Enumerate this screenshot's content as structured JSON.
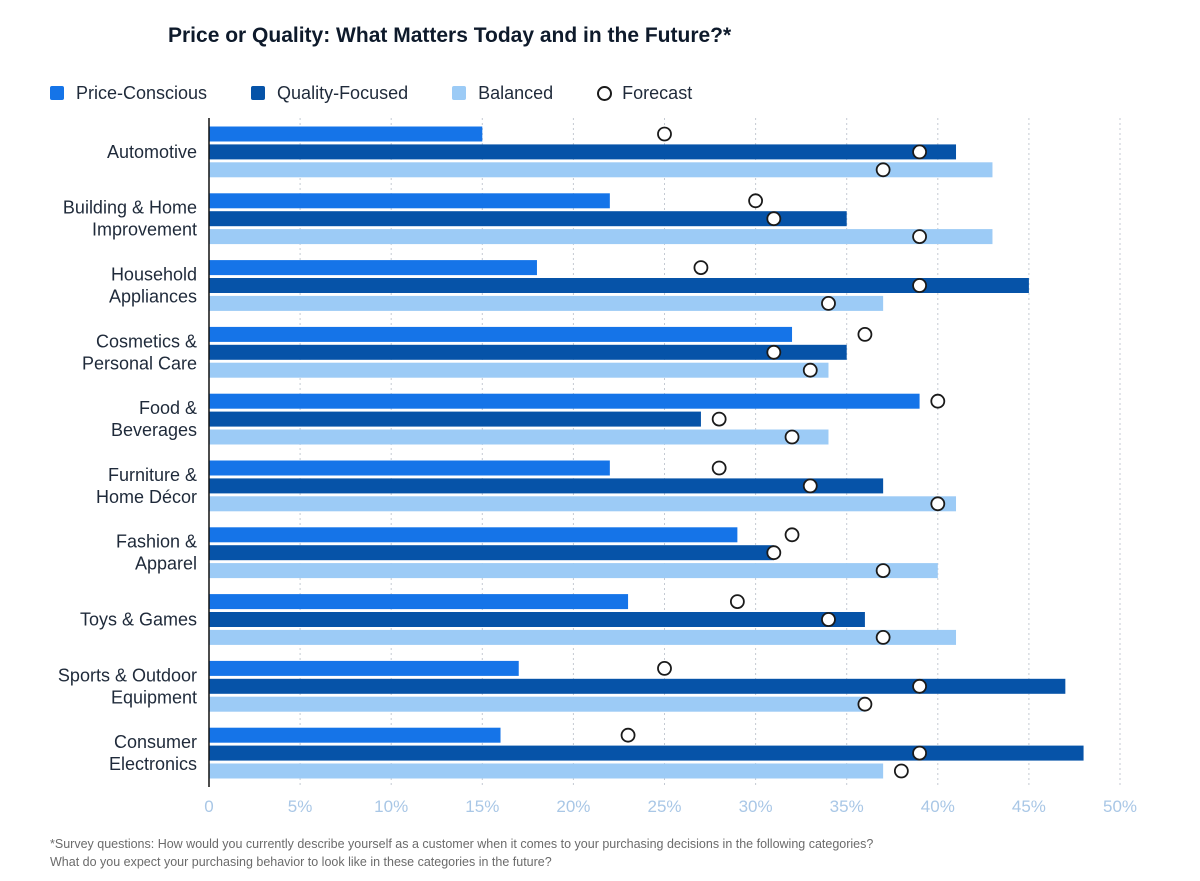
{
  "chart_data": {
    "type": "bar",
    "orientation": "horizontal",
    "title": "Price or Quality: What Matters Today and in the Future?*",
    "categories": [
      "Automotive",
      "Building & Home Improvement",
      "Household Appliances",
      "Cosmetics & Personal Care",
      "Food & Beverages",
      "Furniture & Home Décor",
      "Fashion & Apparel",
      "Toys & Games",
      "Sports & Outdoor Equipment",
      "Consumer Electronics"
    ],
    "category_lines": [
      [
        "Automotive"
      ],
      [
        "Building & Home",
        "Improvement"
      ],
      [
        "Household",
        "Appliances"
      ],
      [
        "Cosmetics &",
        "Personal Care"
      ],
      [
        "Food &",
        "Beverages"
      ],
      [
        "Furniture &",
        "Home Décor"
      ],
      [
        "Fashion &",
        "Apparel"
      ],
      [
        "Toys & Games"
      ],
      [
        "Sports & Outdoor",
        "Equipment"
      ],
      [
        "Consumer",
        "Electronics"
      ]
    ],
    "series": [
      {
        "name": "Price-Conscious",
        "color": "#1574e8",
        "values": [
          15,
          22,
          18,
          32,
          39,
          22,
          29,
          23,
          17,
          16
        ],
        "forecast": [
          25,
          30,
          27,
          36,
          40,
          28,
          32,
          29,
          25,
          23
        ]
      },
      {
        "name": "Quality-Focused",
        "color": "#0653a8",
        "values": [
          41,
          35,
          45,
          35,
          27,
          37,
          31,
          36,
          47,
          48
        ],
        "forecast": [
          39,
          31,
          39,
          31,
          28,
          33,
          31,
          34,
          39,
          39
        ]
      },
      {
        "name": "Balanced",
        "color": "#9ccbf6",
        "values": [
          43,
          43,
          37,
          34,
          34,
          41,
          40,
          41,
          36,
          37
        ],
        "forecast": [
          37,
          39,
          34,
          33,
          32,
          40,
          37,
          37,
          36,
          38
        ]
      }
    ],
    "forecast_label": "Forecast",
    "xlim": [
      0,
      50
    ],
    "xticks": [
      0,
      5,
      10,
      15,
      20,
      25,
      30,
      35,
      40,
      45,
      50
    ],
    "xtick_suffix": "%",
    "grid": true,
    "legend_position": "top-left"
  },
  "footnote": [
    "*Survey questions: How would you currently describe yourself as a customer when it comes to your purchasing decisions in the following categories?",
    "What do you expect your purchasing behavior to look like in these categories in the future?"
  ]
}
